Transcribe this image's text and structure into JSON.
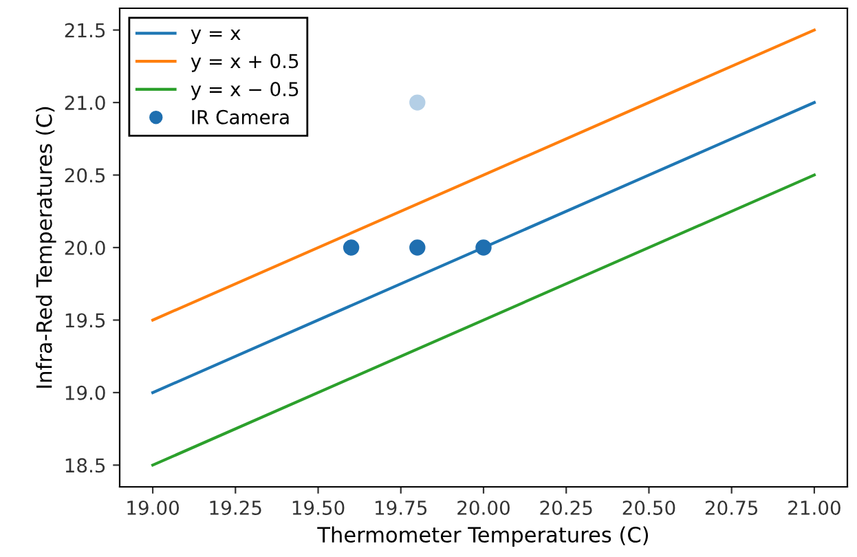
{
  "chart_data": {
    "type": "line",
    "xlabel": "Thermometer Temperatures (C)",
    "ylabel": "Infra-Red Temperatures (C)",
    "xlim": [
      18.9,
      21.1
    ],
    "ylim": [
      18.35,
      21.65
    ],
    "xticks": [
      {
        "value": 19,
        "label": "19.00"
      },
      {
        "value": 19.25,
        "label": "19.25"
      },
      {
        "value": 19.5,
        "label": "19.50"
      },
      {
        "value": 19.75,
        "label": "19.75"
      },
      {
        "value": 20,
        "label": "20.00"
      },
      {
        "value": 20.25,
        "label": "20.25"
      },
      {
        "value": 20.5,
        "label": "20.50"
      },
      {
        "value": 20.75,
        "label": "20.75"
      },
      {
        "value": 21,
        "label": "21.00"
      }
    ],
    "yticks": [
      18.5,
      {
        "value": 19,
        "label": "19.0"
      },
      19.5,
      {
        "value": 20,
        "label": "20.0"
      },
      20.5,
      {
        "value": 21,
        "label": "21.0"
      },
      21.5
    ],
    "grid": false,
    "legend": "top left",
    "series": [
      {
        "name": "y = x",
        "color": "#1f77b4",
        "x": [
          19,
          21
        ],
        "values": [
          19,
          21
        ]
      },
      {
        "name": "y = x + 0.5",
        "color": "#ff7f0e",
        "x": [
          19,
          21
        ],
        "values": [
          19.5,
          21.5
        ]
      },
      {
        "name": "y = x − 0.5",
        "color": "#2ca02c",
        "x": [
          19,
          21
        ],
        "values": [
          18.5,
          20.5
        ]
      },
      {
        "name": "IR Camera",
        "type": "scatter",
        "color": "#1f6fb0",
        "marker": "circle",
        "x": [
          19.6,
          19.8,
          20.0,
          19.8
        ],
        "values": [
          20.0,
          20.0,
          20.0,
          21.0
        ],
        "colors": [
          "#1f6fb0",
          "#1f6fb0",
          "#1f6fb0",
          "#b4cfe6"
        ]
      }
    ]
  }
}
